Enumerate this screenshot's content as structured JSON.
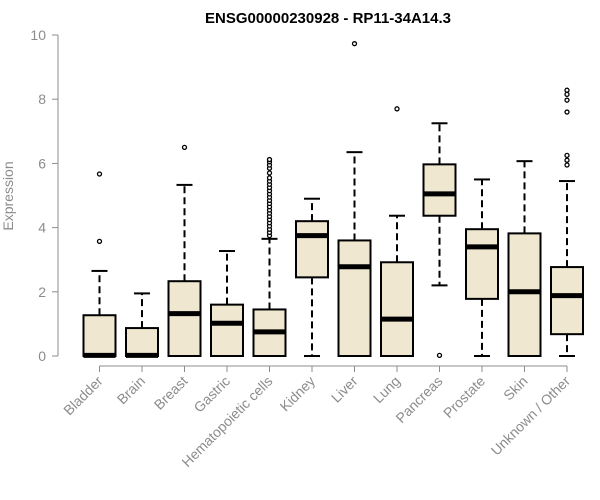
{
  "chart_data": {
    "type": "boxplot",
    "title": "ENSG00000230928 - RP11-34A14.3",
    "ylabel": "Expression",
    "xlabel": "",
    "ylim": [
      0,
      10
    ],
    "yticks": [
      0,
      2,
      4,
      6,
      8,
      10
    ],
    "grid": false,
    "colors": {
      "box_fill": "#efe7cf",
      "stroke": "#000000",
      "tick_text": "#8c8c8c",
      "title": "#000000"
    },
    "categories": [
      "Bladder",
      "Brain",
      "Breast",
      "Gastric",
      "Hematopoietic cells",
      "Kidney",
      "Liver",
      "Lung",
      "Pancreas",
      "Prostate",
      "Skin",
      "Unknown / Other"
    ],
    "boxes": [
      {
        "whisker_low": 0,
        "q1": 0,
        "median": 0.02,
        "q3": 1.27,
        "whisker_high": 2.65,
        "outliers": [
          3.57,
          5.67
        ]
      },
      {
        "whisker_low": 0,
        "q1": 0,
        "median": 0.02,
        "q3": 0.87,
        "whisker_high": 1.95,
        "outliers": []
      },
      {
        "whisker_low": 0,
        "q1": 0,
        "median": 1.32,
        "q3": 2.33,
        "whisker_high": 5.33,
        "outliers": [
          6.5
        ]
      },
      {
        "whisker_low": 0,
        "q1": 0,
        "median": 1.02,
        "q3": 1.6,
        "whisker_high": 3.27,
        "outliers": []
      },
      {
        "whisker_low": 0,
        "q1": 0,
        "median": 0.75,
        "q3": 1.45,
        "whisker_high": 3.65,
        "outliers": [
          3.75,
          3.85,
          3.95,
          4.05,
          4.15,
          4.25,
          4.35,
          4.45,
          4.55,
          4.65,
          4.75,
          4.85,
          4.95,
          5.05,
          5.15,
          5.25,
          5.35,
          5.45,
          5.55,
          5.7,
          5.85,
          5.95,
          6.05,
          6.12
        ]
      },
      {
        "whisker_low": 0,
        "q1": 2.45,
        "median": 3.75,
        "q3": 4.2,
        "whisker_high": 4.9,
        "outliers": []
      },
      {
        "whisker_low": 0,
        "q1": 0,
        "median": 2.78,
        "q3": 3.6,
        "whisker_high": 6.35,
        "outliers": [
          9.73
        ]
      },
      {
        "whisker_low": 0,
        "q1": 0,
        "median": 1.15,
        "q3": 2.92,
        "whisker_high": 4.37,
        "outliers": [
          7.7
        ]
      },
      {
        "whisker_low": 2.2,
        "q1": 4.37,
        "median": 5.05,
        "q3": 5.97,
        "whisker_high": 7.25,
        "outliers": [
          0.02
        ]
      },
      {
        "whisker_low": 0,
        "q1": 1.78,
        "median": 3.4,
        "q3": 3.95,
        "whisker_high": 5.5,
        "outliers": []
      },
      {
        "whisker_low": 0,
        "q1": 0,
        "median": 2.0,
        "q3": 3.82,
        "whisker_high": 6.07,
        "outliers": []
      },
      {
        "whisker_low": 0,
        "q1": 0.68,
        "median": 1.88,
        "q3": 2.77,
        "whisker_high": 5.45,
        "outliers": [
          5.95,
          6.1,
          6.25,
          7.6,
          7.97,
          8.15,
          8.28
        ]
      }
    ]
  }
}
